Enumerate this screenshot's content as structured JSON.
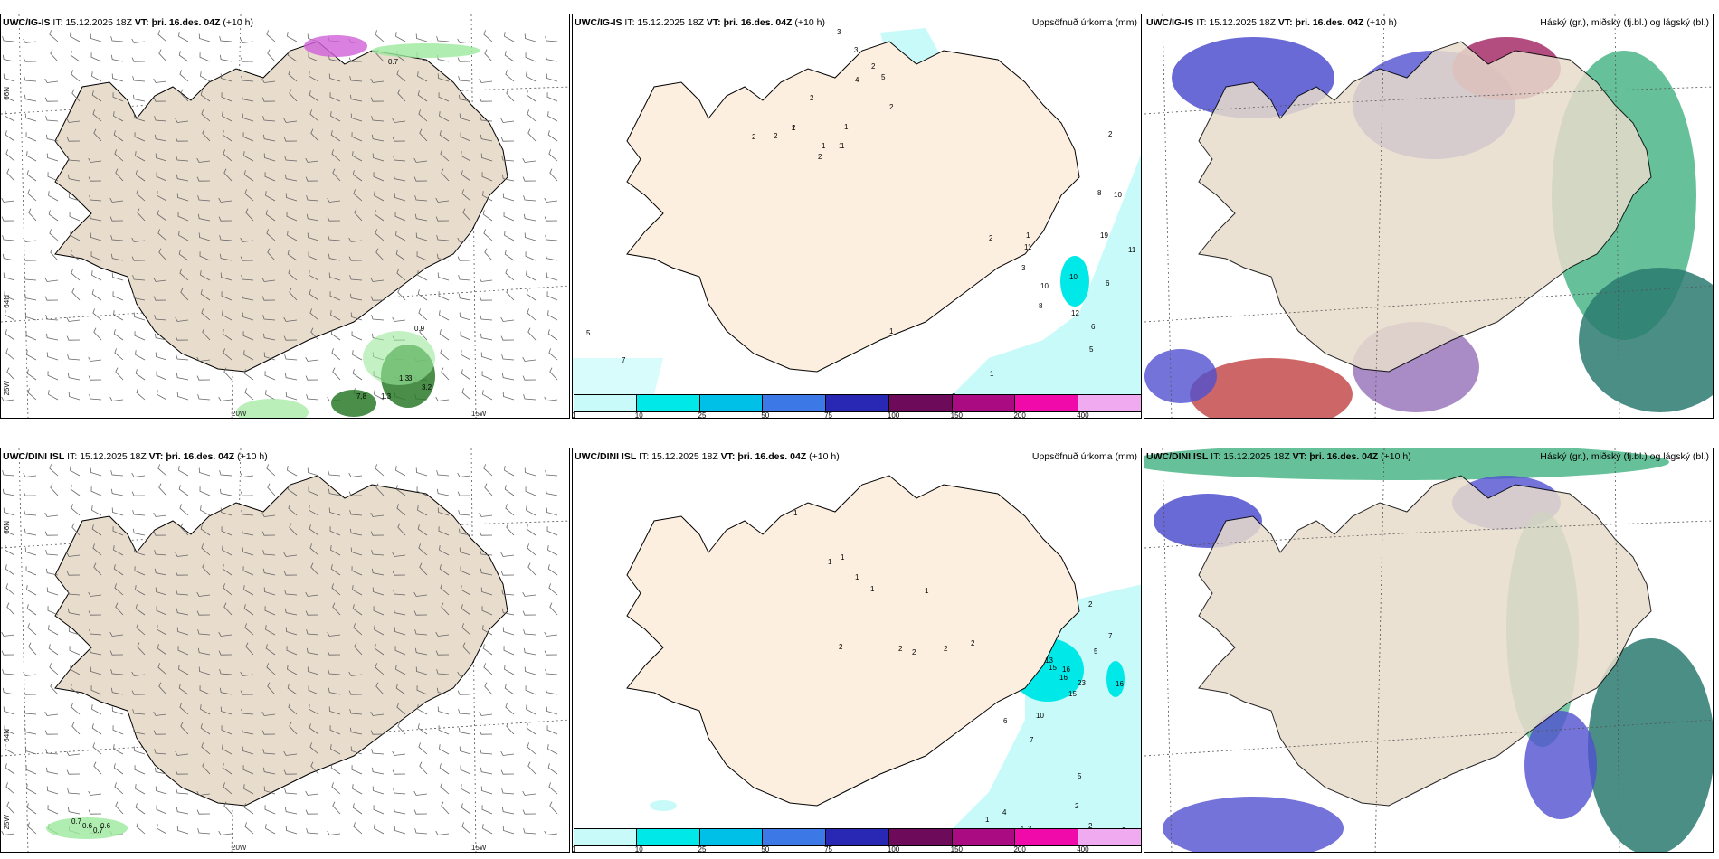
{
  "header": {
    "init_label": "IT:",
    "valid_label": "VT:",
    "init_time": "15.12.2025 18Z",
    "valid_time": "þri. 16.des. 04Z",
    "lead": "(+10 h)"
  },
  "panels": [
    {
      "model": "UWC/IG-IS",
      "title_right": ""
    },
    {
      "model": "UWC/IG-IS",
      "title_right": "Uppsöfnuð úrkoma (mm)"
    },
    {
      "model": "UWC/IG-IS",
      "title_right": "Háský (gr.), miðský (fj.bl.) og lágský (bl.)"
    },
    {
      "model": "UWC/DINI ISL",
      "title_right": ""
    },
    {
      "model": "UWC/DINI ISL",
      "title_right": "Uppsöfnuð úrkoma (mm)"
    },
    {
      "model": "UWC/DINI ISL",
      "title_right": "Háský (gr.), miðský (fj.bl.) og lágský (bl.)"
    }
  ],
  "coords": {
    "lat66": "66N",
    "lat64": "64N",
    "lon25": "25W",
    "lon20": "20W",
    "lon15": "15W"
  },
  "legend": {
    "labels": [
      "1",
      "10",
      "25",
      "50",
      "75",
      "100",
      "150",
      "200",
      "400"
    ],
    "colors": [
      "#c8fafa",
      "#00e8e8",
      "#00c0e8",
      "#3c78e6",
      "#2828b4",
      "#6e0a5a",
      "#aa0a82",
      "#f00aaa",
      "#f0aaf0"
    ]
  },
  "precip_labels_top": [
    "3",
    "3",
    "5",
    "2",
    "4",
    "2",
    "1",
    "2",
    "2",
    "1",
    "1",
    "2",
    "1",
    "1",
    "2",
    "2",
    "2",
    "2",
    "1",
    "8",
    "10",
    "19",
    "11",
    "11",
    "3",
    "10",
    "10",
    "8",
    "6",
    "12",
    "6",
    "5",
    "1",
    "3",
    "1",
    "5",
    "7"
  ],
  "precip_labels_bottom": [
    "1",
    "1",
    "1",
    "1",
    "1",
    "1",
    "2",
    "2",
    "2",
    "2",
    "2",
    "7",
    "2",
    "5",
    "13",
    "15",
    "16",
    "16",
    "23",
    "15",
    "16",
    "10",
    "6",
    "7",
    "5",
    "1",
    "4",
    "4",
    "3",
    "3",
    "4",
    "2",
    "2",
    "3"
  ],
  "wind_labels_top": [
    "0.9",
    "1.3",
    "7.8",
    "1.3",
    "0.7",
    "3.2",
    "3"
  ],
  "wind_labels_bottom": [
    "0.7",
    "0.6",
    "0.7",
    "0.6"
  ]
}
